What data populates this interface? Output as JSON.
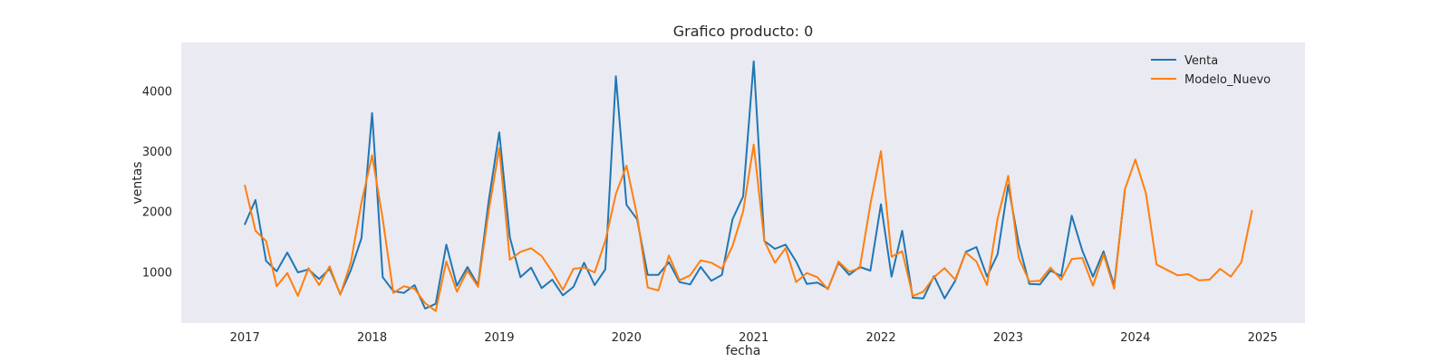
{
  "chart_data": {
    "type": "line",
    "title": "Grafico producto: 0",
    "xlabel": "fecha",
    "ylabel": "ventas",
    "x_tick_labels": [
      "2017",
      "2018",
      "2019",
      "2020",
      "2021",
      "2022",
      "2023",
      "2024",
      "2025"
    ],
    "x_range": [
      "2016-07",
      "2025-05"
    ],
    "ylim": [
      150,
      4800
    ],
    "y_ticks": [
      1000,
      2000,
      3000,
      4000
    ],
    "grid": false,
    "background": "#eaeaf2",
    "legend_position": "top-right",
    "x": [
      "2017-01",
      "2017-02",
      "2017-03",
      "2017-04",
      "2017-05",
      "2017-06",
      "2017-07",
      "2017-08",
      "2017-09",
      "2017-10",
      "2017-11",
      "2017-12",
      "2018-01",
      "2018-02",
      "2018-03",
      "2018-04",
      "2018-05",
      "2018-06",
      "2018-07",
      "2018-08",
      "2018-09",
      "2018-10",
      "2018-11",
      "2018-12",
      "2019-01",
      "2019-02",
      "2019-03",
      "2019-04",
      "2019-05",
      "2019-06",
      "2019-07",
      "2019-08",
      "2019-09",
      "2019-10",
      "2019-11",
      "2019-12",
      "2020-01",
      "2020-02",
      "2020-03",
      "2020-04",
      "2020-05",
      "2020-06",
      "2020-07",
      "2020-08",
      "2020-09",
      "2020-10",
      "2020-11",
      "2020-12",
      "2021-01",
      "2021-02",
      "2021-03",
      "2021-04",
      "2021-05",
      "2021-06",
      "2021-07",
      "2021-08",
      "2021-09",
      "2021-10",
      "2021-11",
      "2021-12",
      "2022-01",
      "2022-02",
      "2022-03",
      "2022-04",
      "2022-05",
      "2022-06",
      "2022-07",
      "2022-08",
      "2022-09",
      "2022-10",
      "2022-11",
      "2022-12",
      "2023-01",
      "2023-02",
      "2023-03",
      "2023-04",
      "2023-05",
      "2023-06",
      "2023-07",
      "2023-08",
      "2023-09",
      "2023-10",
      "2023-11",
      "2023-12",
      "2024-01",
      "2024-02",
      "2024-03",
      "2024-04",
      "2024-05",
      "2024-06",
      "2024-07",
      "2024-08",
      "2024-09",
      "2024-10",
      "2024-11",
      "2024-12"
    ],
    "series": [
      {
        "name": "Venta",
        "color": "#1f77b4",
        "values": [
          1790,
          2190,
          1180,
          1010,
          1320,
          990,
          1040,
          880,
          1050,
          630,
          1030,
          1560,
          3630,
          910,
          680,
          650,
          780,
          390,
          470,
          1450,
          770,
          1080,
          780,
          2170,
          3310,
          1570,
          910,
          1070,
          730,
          870,
          610,
          750,
          1150,
          780,
          1040,
          4240,
          2110,
          1870,
          950,
          950,
          1160,
          830,
          790,
          1080,
          850,
          950,
          1870,
          2250,
          4490,
          1510,
          1380,
          1450,
          1170,
          800,
          820,
          720,
          1150,
          950,
          1080,
          1020,
          2120,
          920,
          1680,
          570,
          560,
          930,
          560,
          850,
          1330,
          1410,
          920,
          1290,
          2440,
          1460,
          800,
          790,
          1020,
          930,
          1930,
          1350,
          920,
          1340,
          770,
          2330,
          null,
          null,
          null,
          null,
          null,
          null,
          null,
          null,
          null,
          null,
          null,
          null
        ]
      },
      {
        "name": "Modelo_Nuevo",
        "color": "#ff7f0e",
        "values": [
          2430,
          1680,
          1510,
          760,
          980,
          600,
          1060,
          780,
          1090,
          620,
          1160,
          2150,
          2930,
          1880,
          650,
          760,
          720,
          480,
          350,
          1170,
          670,
          1020,
          750,
          2000,
          3050,
          1200,
          1330,
          1390,
          1260,
          1000,
          700,
          1050,
          1070,
          990,
          1510,
          2290,
          2760,
          1930,
          740,
          690,
          1270,
          860,
          940,
          1190,
          1150,
          1050,
          1430,
          2000,
          3110,
          1510,
          1150,
          1390,
          830,
          980,
          910,
          710,
          1170,
          1000,
          1060,
          2120,
          3000,
          1250,
          1340,
          600,
          670,
          910,
          1060,
          870,
          1320,
          1170,
          780,
          1880,
          2590,
          1230,
          840,
          850,
          1070,
          870,
          1210,
          1230,
          770,
          1290,
          720,
          2360,
          2860,
          2300,
          1120,
          1030,
          940,
          960,
          860,
          870,
          1050,
          920,
          1160,
          2010
        ]
      }
    ]
  }
}
